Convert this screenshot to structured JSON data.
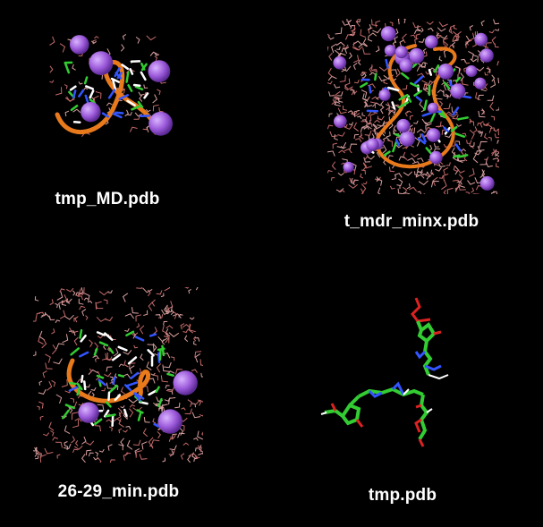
{
  "window": {
    "background_color": "#000000"
  },
  "files": [
    {
      "name": "tmp_MD.pdb",
      "icon": "molecule-thumbnail-icon",
      "style": "water-ribbon-ions"
    },
    {
      "name": "t_mdr_minx.pdb",
      "icon": "molecule-thumbnail-icon",
      "style": "solvated-box-ribbon-ions"
    },
    {
      "name": "26-29_min.pdb",
      "icon": "molecule-thumbnail-icon",
      "style": "water-box-ribbon-ions"
    },
    {
      "name": "tmp.pdb",
      "icon": "molecule-thumbnail-icon",
      "style": "sticks-only"
    }
  ],
  "colors": {
    "water": "#d9a0a0",
    "ion": "#9b59d9",
    "ribbon": "#e87a1c",
    "carbon": "#33cc33",
    "nitrogen": "#3355ff",
    "oxygen": "#dd2222",
    "label": "#ffffff"
  }
}
